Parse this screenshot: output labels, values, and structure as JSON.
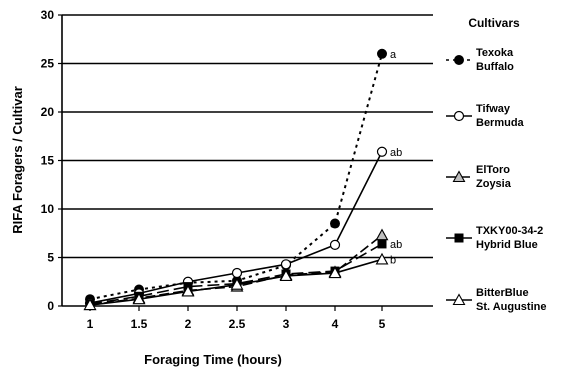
{
  "chart_data": {
    "type": "line",
    "title": "",
    "xlabel": "Foraging Time (hours)",
    "ylabel": "RIFA Foragers / Cultivar",
    "x": [
      1,
      1.5,
      2,
      2.5,
      3,
      4,
      5
    ],
    "x_tick_labels": [
      "1",
      "1.5",
      "2",
      "2.5",
      "3",
      "4",
      "5"
    ],
    "ylim": [
      0,
      30
    ],
    "y_ticks": [
      0,
      5,
      10,
      15,
      20,
      25,
      30
    ],
    "y_tick_labels": [
      "0",
      "5",
      "10",
      "15",
      "20",
      "25",
      "30"
    ],
    "grid": "horizontal",
    "legend_title": "Cultivars",
    "legend_position": "right",
    "series": [
      {
        "name": "Texoka Buffalo",
        "legend": [
          "Texoka",
          "Buffalo"
        ],
        "marker": "filled-circle",
        "line": "dotted",
        "values": [
          0.7,
          1.7,
          2.4,
          2.6,
          4.2,
          8.5,
          26.0
        ],
        "sig": "a"
      },
      {
        "name": "Tifway Bermuda",
        "legend": [
          "Tifway",
          "Bermuda"
        ],
        "marker": "open-circle",
        "line": "solid",
        "values": [
          0.3,
          1.3,
          2.5,
          3.4,
          4.3,
          6.3,
          15.9
        ],
        "sig": "ab"
      },
      {
        "name": "ElToro Zoysia",
        "legend": [
          "ElToro",
          "Zoysia"
        ],
        "marker": "gray-triangle",
        "line": "dashed",
        "values": [
          0.1,
          0.8,
          1.6,
          2.0,
          3.2,
          3.5,
          7.3
        ],
        "sig": ""
      },
      {
        "name": "TXKY00-34-2 Hybrid Blue",
        "legend": [
          "TXKY00-34-2",
          "Hybrid Blue"
        ],
        "marker": "filled-square",
        "line": "long-dash",
        "values": [
          0.2,
          1.0,
          2.0,
          2.3,
          3.3,
          3.6,
          6.4
        ],
        "sig": "ab"
      },
      {
        "name": "BitterBlue St. Augustine",
        "legend": [
          "BitterBlue",
          "St. Augustine"
        ],
        "marker": "open-triangle",
        "line": "solid",
        "values": [
          0.1,
          0.7,
          1.5,
          2.2,
          3.1,
          3.4,
          4.8
        ],
        "sig": "b"
      }
    ]
  }
}
